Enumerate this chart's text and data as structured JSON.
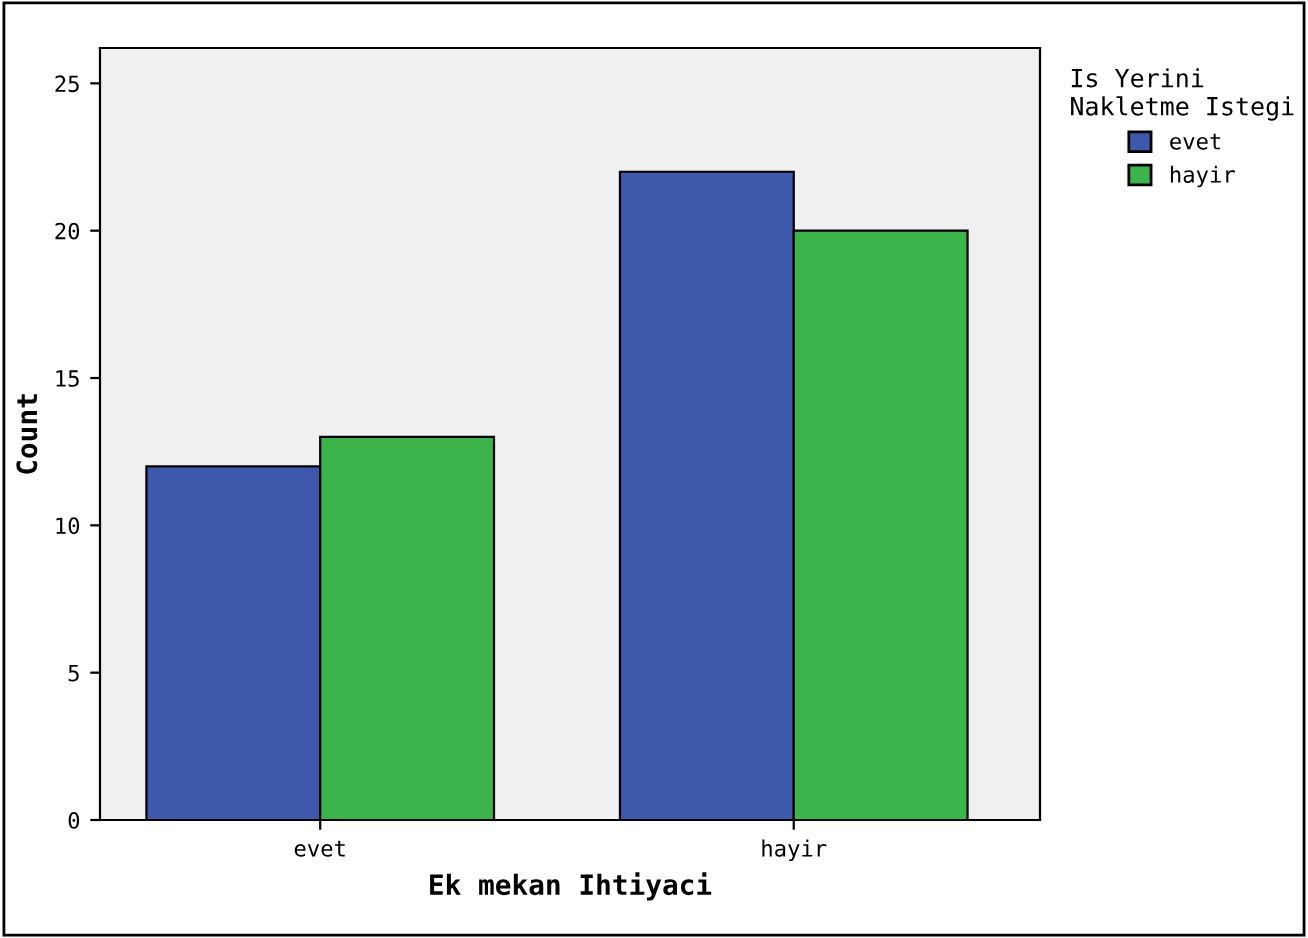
{
  "chart_data": {
    "type": "bar",
    "xlabel": "Ek mekan Ihtiyaci",
    "ylabel": "Count",
    "legend_title": "Is Yerini\nNakletme Istegi",
    "categories": [
      "evet",
      "hayir"
    ],
    "series": [
      {
        "name": "evet",
        "color": "#3e58ac",
        "values": [
          12,
          22
        ]
      },
      {
        "name": "hayir",
        "color": "#3cb44b",
        "values": [
          13,
          20
        ]
      }
    ],
    "ylim": [
      0,
      26.2
    ],
    "yticks": [
      0,
      5,
      10,
      15,
      20,
      25
    ],
    "grid": false,
    "legend": "top right"
  }
}
